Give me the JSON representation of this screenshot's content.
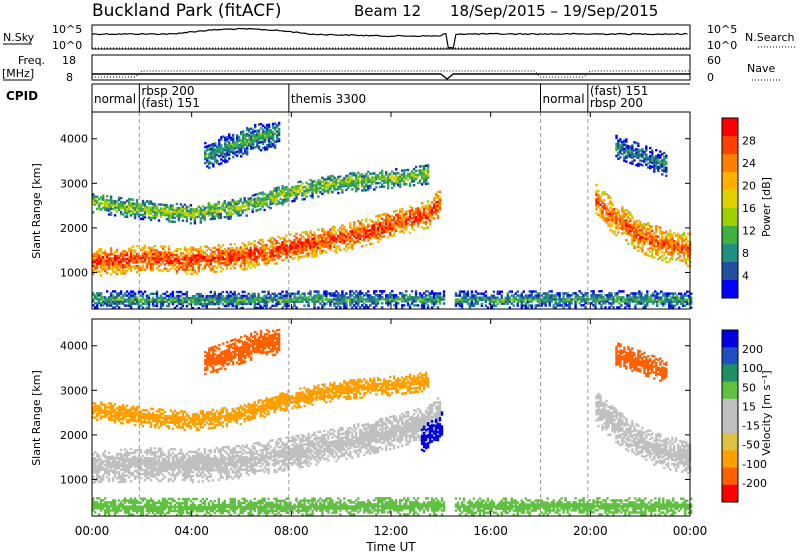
{
  "header": {
    "station": "Buckland Park (fitACF)",
    "beam": "Beam 12",
    "date_range": "18/Sep/2015 – 19/Sep/2015"
  },
  "top_panels": {
    "nsky_label": "N.Sky",
    "nsky_ticks": [
      "10^5",
      "10^0"
    ],
    "nsearch_label": "N.Search",
    "nsearch_ticks": [
      "10^5",
      "10^0"
    ],
    "freq_label": "Freq.",
    "freq_unit": "[MHz]",
    "freq_ticks": [
      "18",
      "8"
    ],
    "nave_label": "Nave",
    "nave_ticks": [
      "60",
      "0"
    ],
    "cpid_label": "CPID",
    "cpid_modes": [
      {
        "start": 0.0,
        "lines": [
          "normal"
        ]
      },
      {
        "start": 1.9,
        "lines": [
          "rbsp 200",
          "(fast) 151"
        ]
      },
      {
        "start": 7.9,
        "lines": [
          "themis 3300"
        ]
      },
      {
        "start": 18.0,
        "lines": [
          "normal"
        ]
      },
      {
        "start": 19.9,
        "lines": [
          "(fast) 151",
          "rbsp 200"
        ]
      }
    ]
  },
  "power_colorbar": {
    "label": "Power [dB]",
    "ticks": [
      "28",
      "24",
      "20",
      "16",
      "12",
      "8",
      "4"
    ],
    "colors": [
      "#ff0000",
      "#ff4000",
      "#ff8000",
      "#ffb000",
      "#e0d000",
      "#a0d000",
      "#40b040",
      "#209080",
      "#2050a0",
      "#0000ff"
    ]
  },
  "velocity_colorbar": {
    "label": "Velocity [m s⁻¹]",
    "ticks": [
      "200",
      "100",
      "50",
      "15",
      "-15",
      "-50",
      "-100",
      "-200"
    ],
    "colors": [
      "#0000e0",
      "#2050c0",
      "#209060",
      "#60c040",
      "#c0c0c0",
      "#c0c0c0",
      "#e0c040",
      "#ffa000",
      "#ff6000",
      "#ff0000"
    ]
  },
  "chart_data": [
    {
      "type": "heatmap",
      "quantity": "Power",
      "ylabel": "Slant Range [km]",
      "yticks": [
        1000,
        2000,
        3000,
        4000
      ],
      "ylim": [
        180,
        4600
      ],
      "xlim": [
        0,
        24
      ],
      "bands": [
        {
          "name": "main-E",
          "t": [
            0,
            2,
            4,
            6,
            8,
            10,
            12,
            13.5,
            14
          ],
          "r": [
            1200,
            1300,
            1250,
            1350,
            1550,
            1750,
            2050,
            2300,
            2600
          ],
          "width": 300,
          "value": 28
        },
        {
          "name": "upper",
          "t": [
            0,
            2,
            4,
            6,
            8,
            10,
            12,
            13.5
          ],
          "r": [
            2550,
            2400,
            2300,
            2450,
            2800,
            3000,
            3100,
            3200
          ],
          "width": 220,
          "value": 14
        },
        {
          "name": "high-patch",
          "t": [
            4.5,
            5.5,
            6.5,
            7.5
          ],
          "r": [
            3600,
            3800,
            4000,
            4100
          ],
          "width": 300,
          "value": 10
        },
        {
          "name": "near-range",
          "t": [
            0,
            4,
            8,
            12,
            16,
            20,
            24
          ],
          "r": [
            380,
            360,
            370,
            380,
            370,
            380,
            370
          ],
          "width": 180,
          "value": 10
        },
        {
          "name": "evening",
          "t": [
            20.2,
            21,
            22,
            23,
            24
          ],
          "r": [
            2600,
            2200,
            1800,
            1600,
            1500
          ],
          "width": 380,
          "value": 26
        },
        {
          "name": "evening-upper",
          "t": [
            21,
            22,
            23
          ],
          "r": [
            3800,
            3600,
            3400
          ],
          "width": 250,
          "value": 8
        }
      ]
    },
    {
      "type": "heatmap",
      "quantity": "Velocity",
      "ylabel": "Slant Range [km]",
      "yticks": [
        1000,
        2000,
        3000,
        4000
      ],
      "ylim": [
        180,
        4600
      ],
      "xlim": [
        0,
        24
      ],
      "bands": [
        {
          "name": "main-E",
          "t": [
            0,
            2,
            4,
            6,
            8,
            10,
            12,
            13.5,
            14
          ],
          "r": [
            1250,
            1350,
            1300,
            1400,
            1600,
            1800,
            2050,
            2300,
            2600
          ],
          "width": 380,
          "value": 0
        },
        {
          "name": "upper",
          "t": [
            0,
            2,
            4,
            6,
            8,
            10,
            12,
            13.5
          ],
          "r": [
            2550,
            2400,
            2300,
            2450,
            2800,
            3000,
            3100,
            3200
          ],
          "width": 220,
          "value": -60
        },
        {
          "name": "high-patch",
          "t": [
            4.5,
            5.5,
            6.5,
            7.5
          ],
          "r": [
            3600,
            3800,
            4000,
            4100
          ],
          "width": 300,
          "value": -150
        },
        {
          "name": "blue-patch",
          "t": [
            13.2,
            13.6,
            14
          ],
          "r": [
            1900,
            2000,
            2200
          ],
          "width": 300,
          "value": 220
        },
        {
          "name": "near-range",
          "t": [
            0,
            4,
            8,
            12,
            16,
            20,
            24
          ],
          "r": [
            380,
            360,
            370,
            380,
            370,
            380,
            370
          ],
          "width": 180,
          "value": 40
        },
        {
          "name": "evening",
          "t": [
            20.2,
            21,
            22,
            23,
            24
          ],
          "r": [
            2600,
            2200,
            1800,
            1600,
            1500
          ],
          "width": 380,
          "value": 0
        },
        {
          "name": "evening-upper",
          "t": [
            21,
            22,
            23
          ],
          "r": [
            3800,
            3600,
            3400
          ],
          "width": 250,
          "value": -120
        }
      ]
    }
  ],
  "xaxis": {
    "label": "Time UT",
    "ticks": [
      "00:00",
      "04:00",
      "08:00",
      "12:00",
      "16:00",
      "20:00",
      "00:00"
    ]
  }
}
